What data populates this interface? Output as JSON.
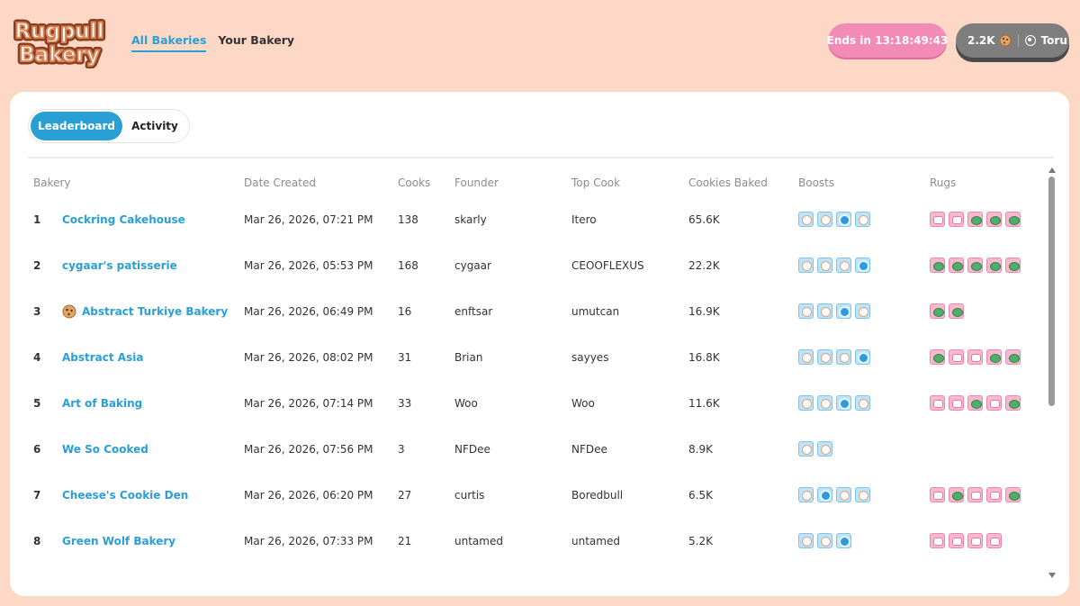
{
  "header": {
    "logo_line1": "Rugpull",
    "logo_line2": "Bakery",
    "nav": [
      {
        "label": "All Bakeries",
        "active": true
      },
      {
        "label": "Your Bakery",
        "active": false
      }
    ],
    "timer_label": "Ends in 13:18:49:43",
    "balance": "2.2K",
    "username": "Toru"
  },
  "tabs": [
    {
      "label": "Leaderboard",
      "active": true
    },
    {
      "label": "Activity",
      "active": false
    }
  ],
  "table": {
    "columns": [
      "Bakery",
      "Date Created",
      "Cooks",
      "Founder",
      "Top Cook",
      "Cookies Baked",
      "Boosts",
      "Rugs"
    ],
    "rows": [
      {
        "rank": "1",
        "bakery": "Cockring Cakehouse",
        "has_cookie_icon": false,
        "date": "Mar 26, 2026, 07:21 PM",
        "cooks": "138",
        "founder": "skarly",
        "top_cook": "Itero",
        "cookies": "65.6K",
        "boosts": [
          "chef",
          "chef",
          "plate",
          "chef"
        ],
        "rugs": [
          "cake",
          "cake",
          "turtle",
          "turtle",
          "turtle"
        ]
      },
      {
        "rank": "2",
        "bakery": "cygaar's patisserie",
        "has_cookie_icon": false,
        "date": "Mar 26, 2026, 05:53 PM",
        "cooks": "168",
        "founder": "cygaar",
        "top_cook": "CEOOFLEXUS",
        "cookies": "22.2K",
        "boosts": [
          "chef",
          "chef",
          "chef",
          "plate"
        ],
        "rugs": [
          "turtle",
          "turtle",
          "turtle",
          "turtle",
          "turtle"
        ]
      },
      {
        "rank": "3",
        "bakery": "Abstract Turkiye Bakery",
        "has_cookie_icon": true,
        "date": "Mar 26, 2026, 06:49 PM",
        "cooks": "16",
        "founder": "enftsar",
        "top_cook": "umutcan",
        "cookies": "16.9K",
        "boosts": [
          "chef",
          "chef",
          "plate",
          "chef"
        ],
        "rugs": [
          "turtle",
          "turtle"
        ]
      },
      {
        "rank": "4",
        "bakery": "Abstract Asia",
        "has_cookie_icon": false,
        "date": "Mar 26, 2026, 08:02 PM",
        "cooks": "31",
        "founder": "Brian",
        "top_cook": "sayyes",
        "cookies": "16.8K",
        "boosts": [
          "chef",
          "chef",
          "chef",
          "plate"
        ],
        "rugs": [
          "turtle",
          "cake",
          "cake",
          "turtle",
          "turtle"
        ]
      },
      {
        "rank": "5",
        "bakery": "Art of Baking",
        "has_cookie_icon": false,
        "date": "Mar 26, 2026, 07:14 PM",
        "cooks": "33",
        "founder": "Woo",
        "top_cook": "Woo",
        "cookies": "11.6K",
        "boosts": [
          "chef",
          "chef",
          "plate",
          "chef"
        ],
        "rugs": [
          "cake",
          "cake",
          "turtle",
          "cake",
          "turtle"
        ]
      },
      {
        "rank": "6",
        "bakery": "We So Cooked",
        "has_cookie_icon": false,
        "date": "Mar 26, 2026, 07:56 PM",
        "cooks": "3",
        "founder": "NFDee",
        "top_cook": "NFDee",
        "cookies": "8.9K",
        "boosts": [
          "chef",
          "chef"
        ],
        "rugs": []
      },
      {
        "rank": "7",
        "bakery": "Cheese's Cookie Den",
        "has_cookie_icon": false,
        "date": "Mar 26, 2026, 06:20 PM",
        "cooks": "27",
        "founder": "curtis",
        "top_cook": "Boredbull",
        "cookies": "6.5K",
        "boosts": [
          "chef",
          "plate",
          "chef",
          "chef"
        ],
        "rugs": [
          "cake",
          "turtle",
          "cake",
          "cake",
          "turtle"
        ]
      },
      {
        "rank": "8",
        "bakery": "Green Wolf Bakery",
        "has_cookie_icon": false,
        "date": "Mar 26, 2026, 07:33 PM",
        "cooks": "21",
        "founder": "untamed",
        "top_cook": "untamed",
        "cookies": "5.2K",
        "boosts": [
          "chef",
          "chef",
          "plate"
        ],
        "rugs": [
          "cake",
          "cake",
          "cake",
          "cake"
        ]
      }
    ]
  },
  "colors": {
    "background": "#fdd8c6",
    "accent_blue": "#2a9fd6",
    "timer_pink": "#f28bb5",
    "user_pill": "#7e7e7e"
  }
}
